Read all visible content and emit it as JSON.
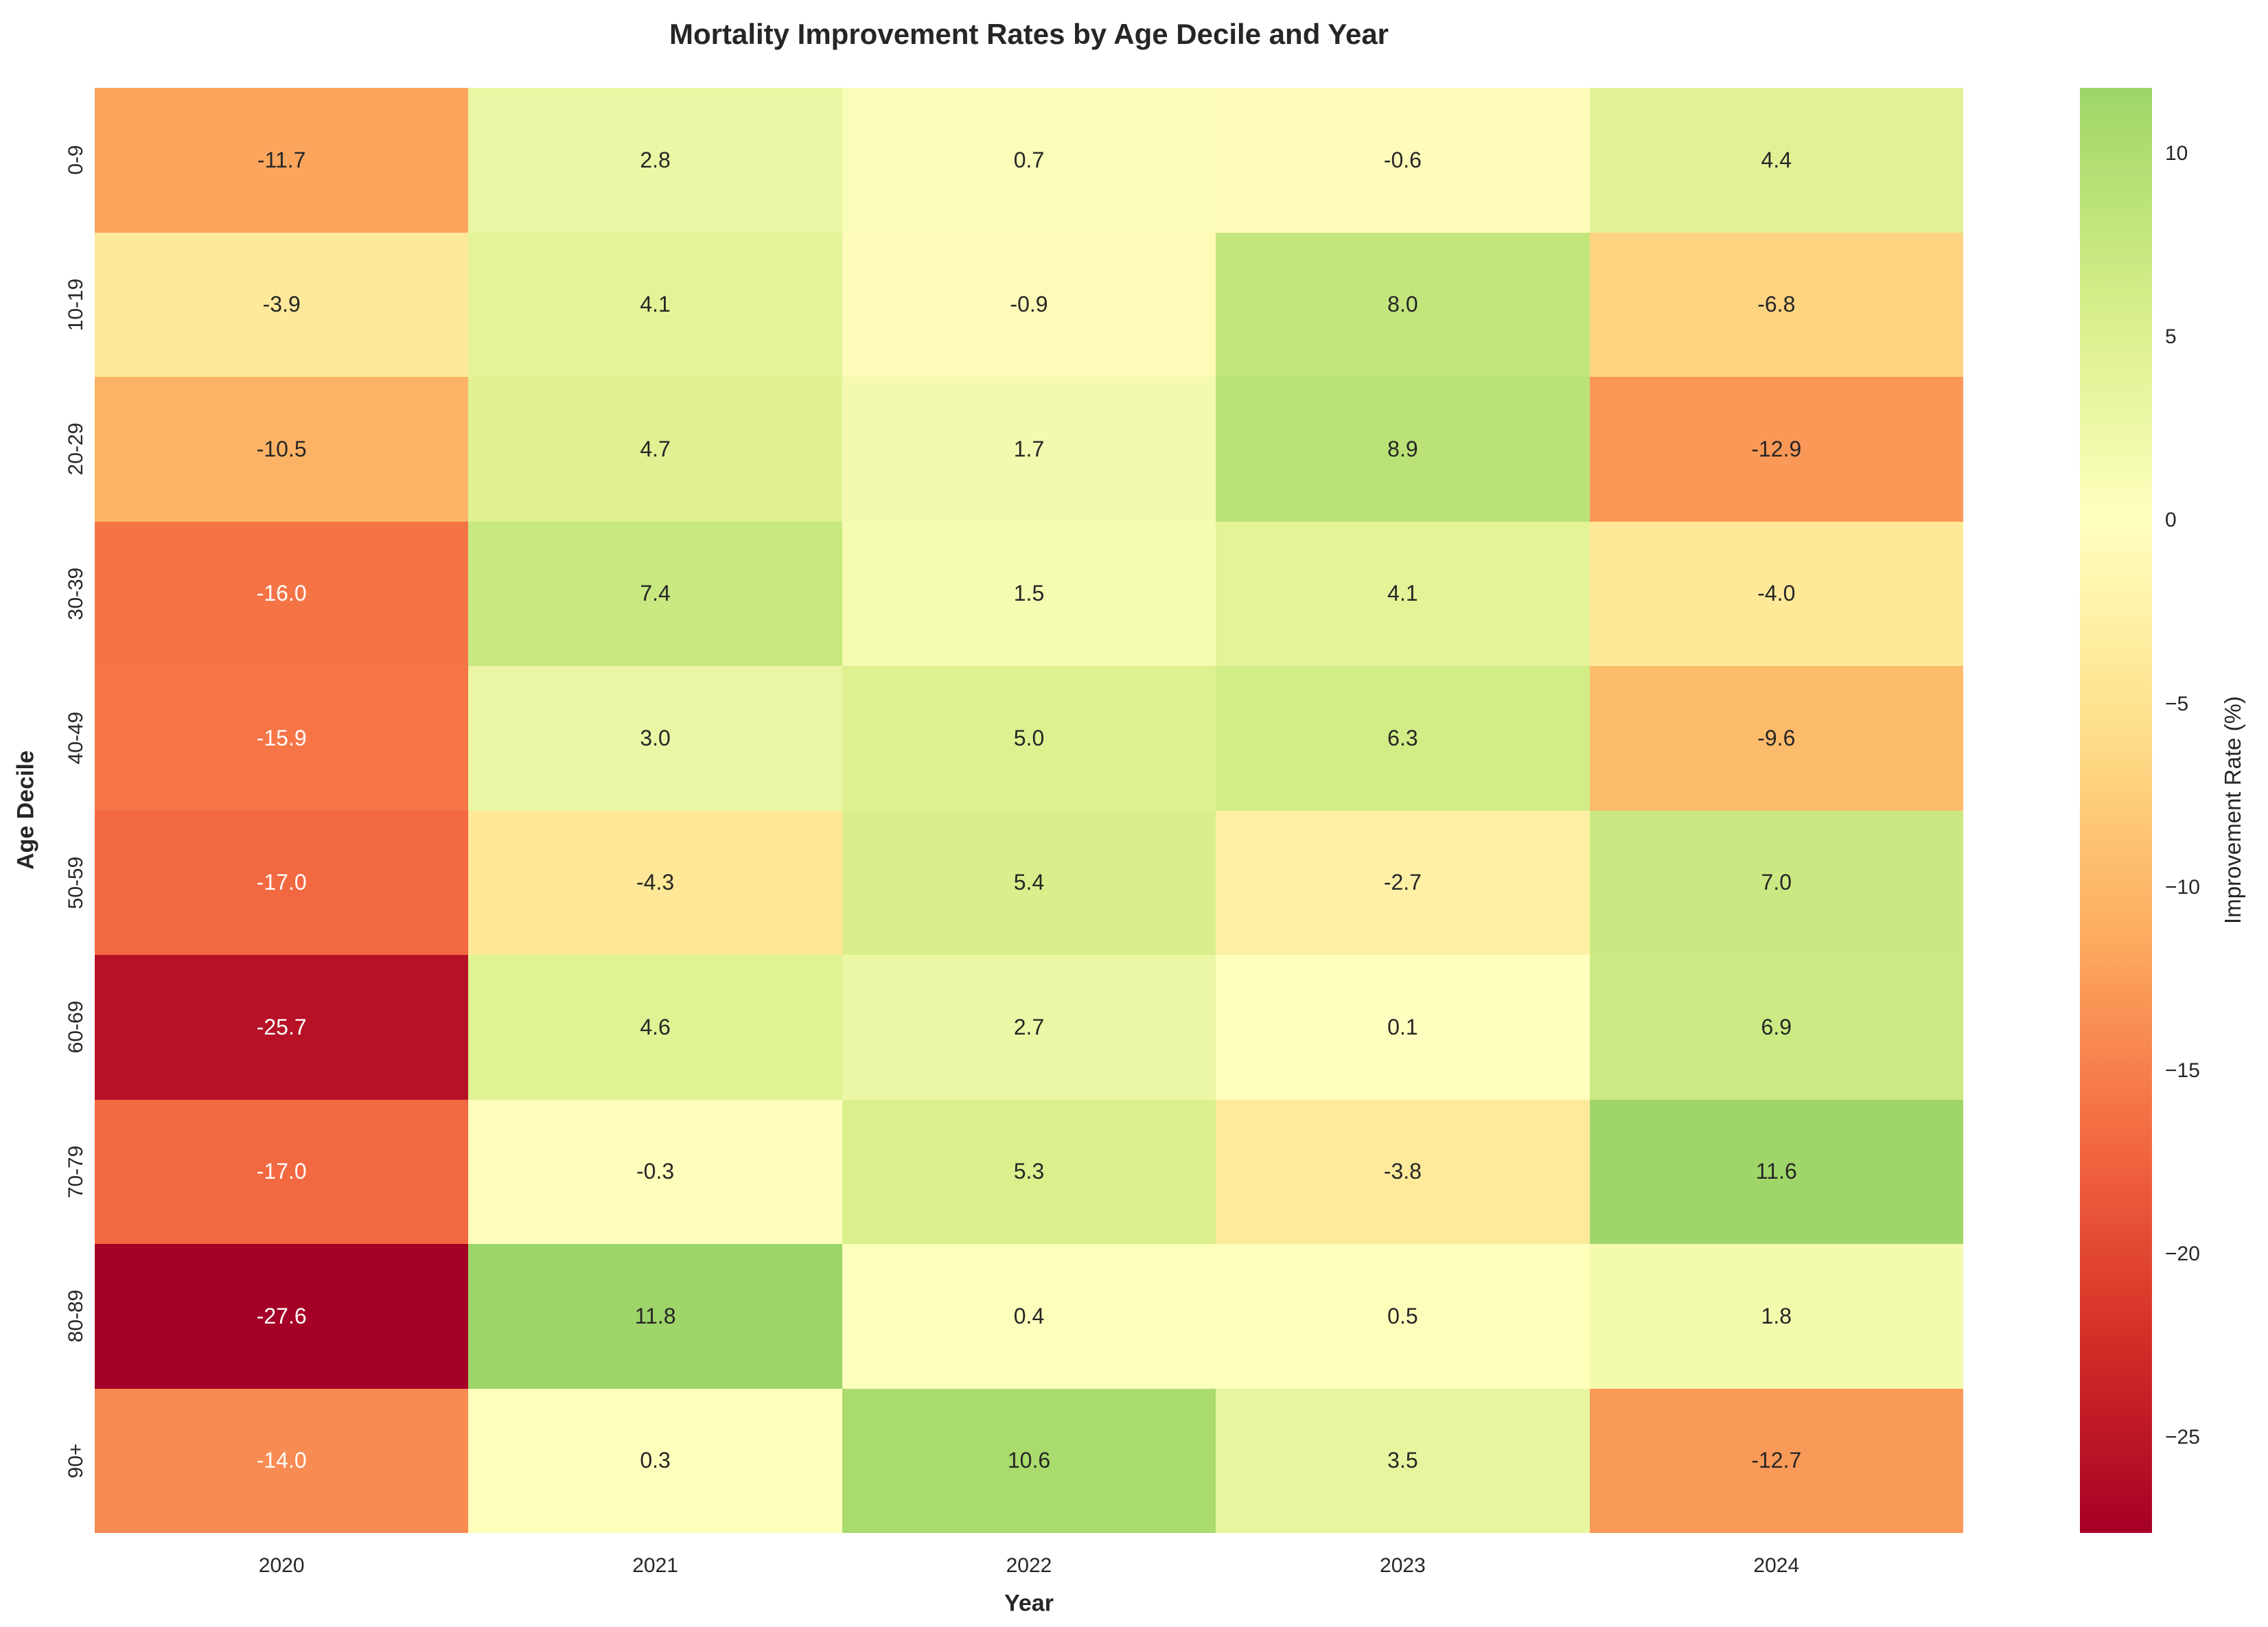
{
  "chart_data": {
    "type": "heatmap",
    "title": "Mortality Improvement Rates by Age Decile and Year",
    "xlabel": "Year",
    "ylabel": "Age Decile",
    "x_categories": [
      "2020",
      "2021",
      "2022",
      "2023",
      "2024"
    ],
    "y_categories": [
      "0-9",
      "10-19",
      "20-29",
      "30-39",
      "40-49",
      "50-59",
      "60-69",
      "70-79",
      "80-89",
      "90+"
    ],
    "values": [
      [
        -11.7,
        2.8,
        0.7,
        -0.6,
        4.4
      ],
      [
        -3.9,
        4.1,
        -0.9,
        8.0,
        -6.8
      ],
      [
        -10.5,
        4.7,
        1.7,
        8.9,
        -12.9
      ],
      [
        -16.0,
        7.4,
        1.5,
        4.1,
        -4.0
      ],
      [
        -15.9,
        3.0,
        5.0,
        6.3,
        -9.6
      ],
      [
        -17.0,
        -4.3,
        5.4,
        -2.7,
        7.0
      ],
      [
        -25.7,
        4.6,
        2.7,
        0.1,
        6.9
      ],
      [
        -17.0,
        -0.3,
        5.3,
        -3.8,
        11.6
      ],
      [
        -27.6,
        11.8,
        0.4,
        0.5,
        1.8
      ],
      [
        -14.0,
        0.3,
        10.6,
        3.5,
        -12.7
      ]
    ],
    "colorbar": {
      "label": "Improvement Rate (%)",
      "tick_values": [
        10,
        5,
        0,
        -5,
        -10,
        -15,
        -20,
        -25
      ],
      "tick_labels": [
        "10",
        "5",
        "0",
        "−5",
        "−10",
        "−15",
        "−20",
        "−25"
      ],
      "vmin": -27.6,
      "vmax": 11.8,
      "center": 0
    },
    "colormap": {
      "name": "RdYlGn",
      "stops": [
        "#a50026",
        "#d73027",
        "#f46d43",
        "#fdae61",
        "#fee08b",
        "#ffffbf",
        "#d9ef8b",
        "#a6d96a",
        "#66bd63",
        "#1a9850",
        "#006837"
      ]
    },
    "text_colors": {
      "dark": "#262626",
      "light": "#ffffff"
    },
    "background": "#ffffff"
  }
}
